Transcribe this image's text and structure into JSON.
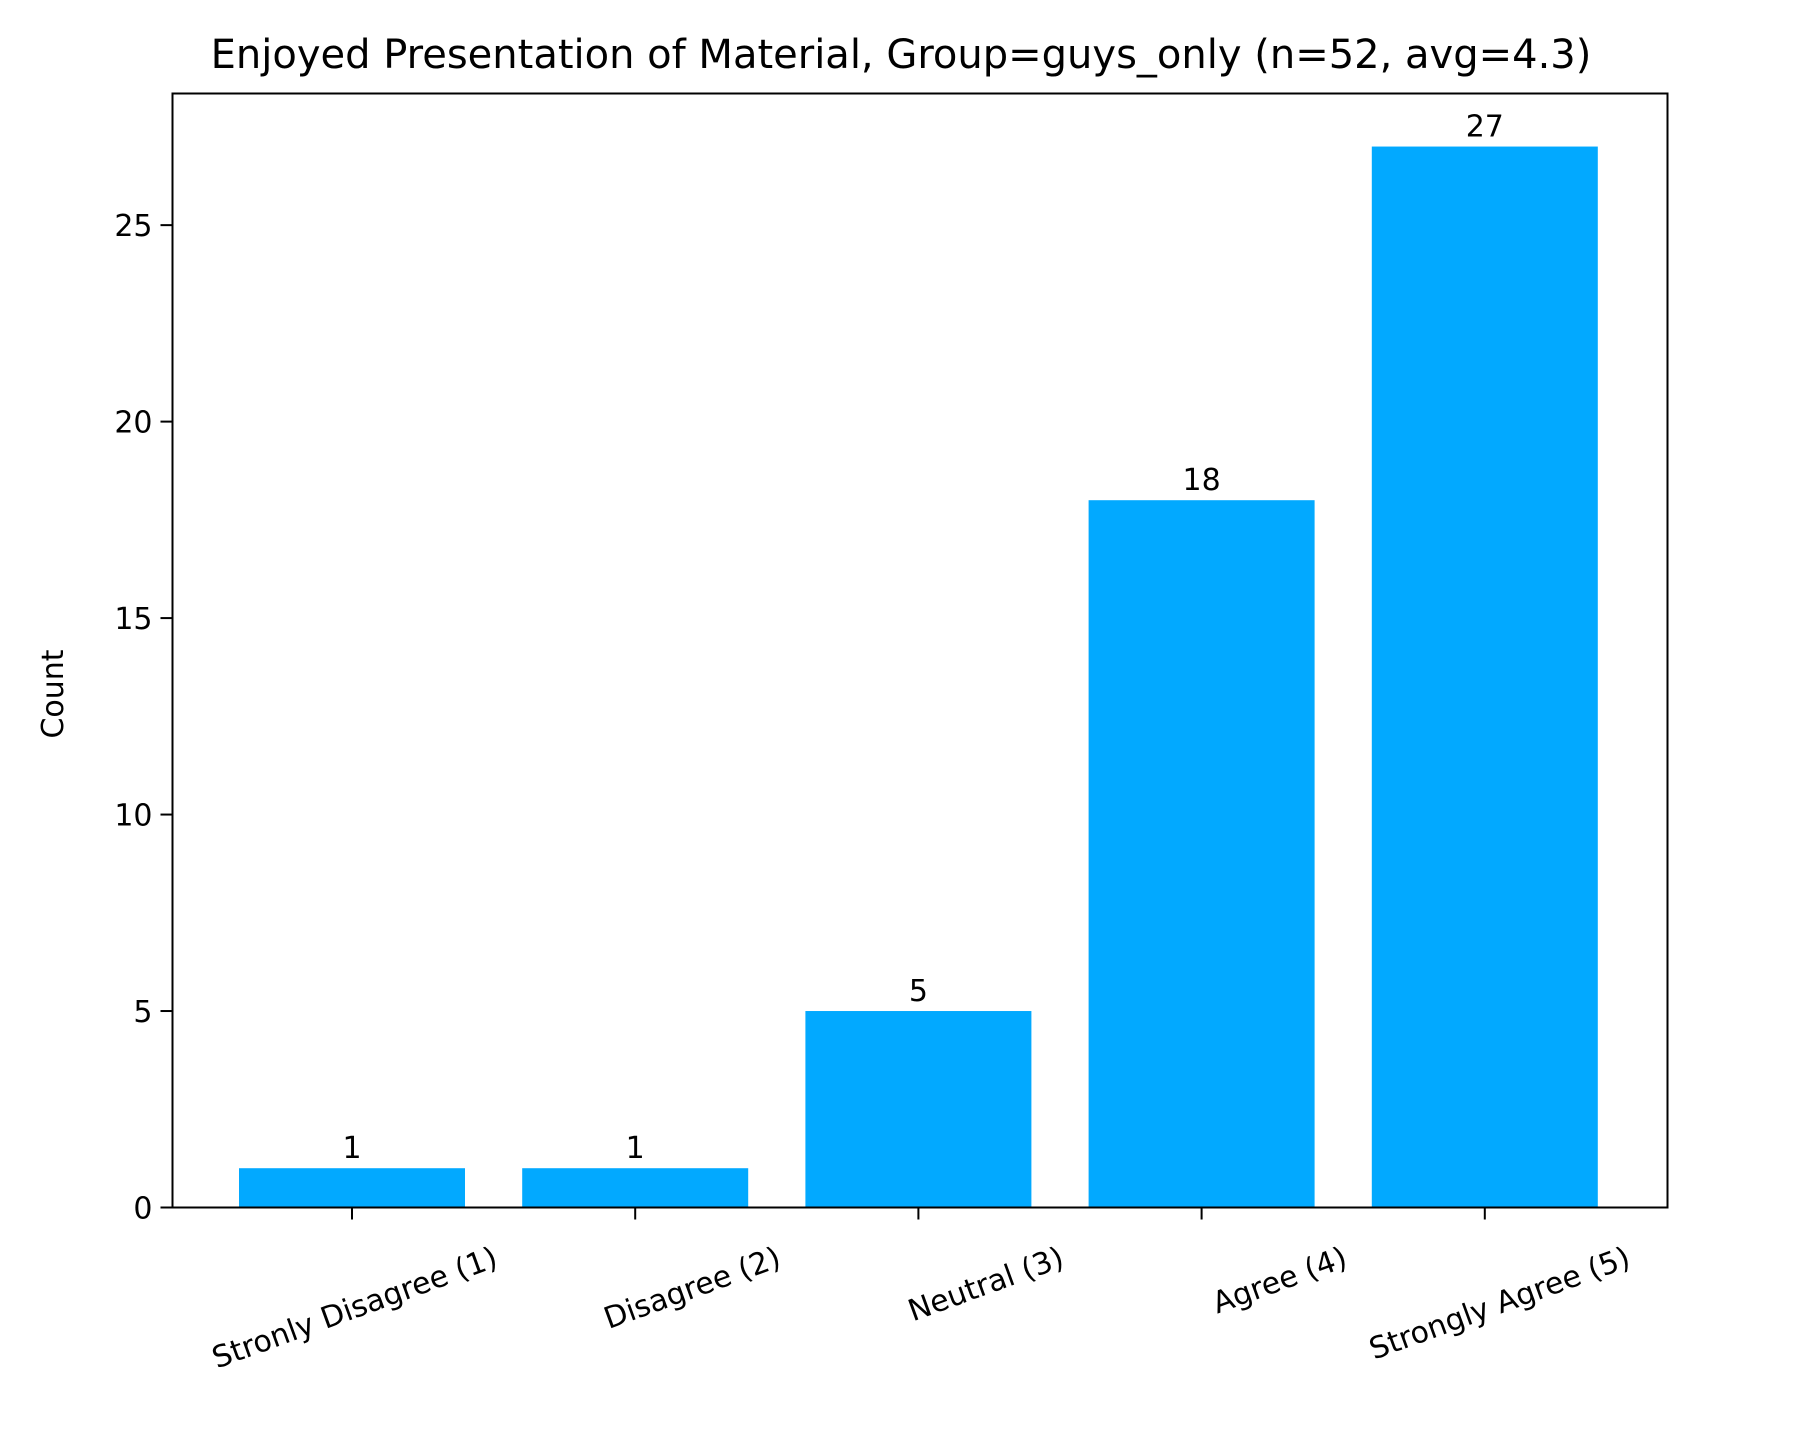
{
  "chart_data": {
    "type": "bar",
    "title": "Enjoyed Presentation of Material, Group=guys_only (n=52, avg=4.3)",
    "xlabel": "",
    "ylabel": "Count",
    "categories": [
      "Stronly Disagree (1)",
      "Disagree (2)",
      "Neutral (3)",
      "Agree (4)",
      "Strongly Agree (5)"
    ],
    "values": [
      1,
      1,
      5,
      18,
      27
    ],
    "data_labels": [
      "1",
      "1",
      "5",
      "18",
      "27"
    ],
    "ylim": [
      0,
      28.35
    ],
    "yticks": [
      0,
      5,
      10,
      15,
      20,
      25
    ],
    "ytick_labels": [
      "0",
      "5",
      "10",
      "15",
      "20",
      "25"
    ],
    "bar_color": "#02a9ff",
    "grid": false,
    "legend": "none"
  }
}
